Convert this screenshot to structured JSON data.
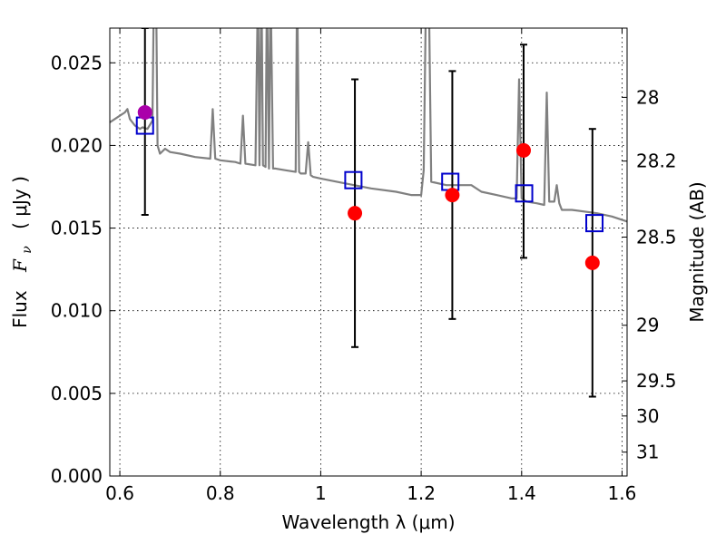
{
  "chart_data": {
    "type": "scatter",
    "xlabel": "Wavelength  λ (μm)",
    "ylabel": "Flux  F_ν  ( μJy )",
    "ylabel_parts": {
      "flux": "Flux",
      "sym": "F",
      "sub": "ν",
      "unit": "( μJy )"
    },
    "y2label": "Magnitude (AB)",
    "xlim": [
      0.58,
      1.61
    ],
    "ylim": [
      0.0,
      0.0271
    ],
    "xticks": [
      0.6,
      0.8,
      1.0,
      1.2,
      1.4,
      1.6
    ],
    "xtick_labels": [
      "0.6",
      "0.8",
      "1",
      "1.2",
      "1.4",
      "1.6"
    ],
    "yticks": [
      0.0,
      0.005,
      0.01,
      0.015,
      0.02,
      0.025
    ],
    "ytick_labels": [
      "0.000",
      "0.005",
      "0.010",
      "0.015",
      "0.020",
      "0.025"
    ],
    "y2ticks": [
      28,
      28.2,
      28.5,
      29,
      29.5,
      30,
      31
    ],
    "y2tick_labels": [
      "28",
      "28.2",
      "28.5",
      "29",
      "29.5",
      "30",
      "31"
    ],
    "grid": true,
    "series": [
      {
        "kind": "spectrum",
        "color": "#808080",
        "x": [
          0.58,
          0.59,
          0.6,
          0.61,
          0.615,
          0.62,
          0.63,
          0.64,
          0.645,
          0.655,
          0.665,
          0.668,
          0.672,
          0.675,
          0.68,
          0.69,
          0.7,
          0.72,
          0.75,
          0.78,
          0.785,
          0.79,
          0.8,
          0.83,
          0.84,
          0.845,
          0.85,
          0.87,
          0.875,
          0.878,
          0.882,
          0.885,
          0.89,
          0.893,
          0.897,
          0.9,
          0.905,
          0.91,
          0.93,
          0.95,
          0.953,
          0.957,
          0.96,
          0.97,
          0.975,
          0.98,
          0.985,
          1.0,
          1.05,
          1.1,
          1.15,
          1.18,
          1.2,
          1.205,
          1.21,
          1.215,
          1.22,
          1.25,
          1.28,
          1.3,
          1.32,
          1.35,
          1.38,
          1.39,
          1.395,
          1.4,
          1.41,
          1.43,
          1.445,
          1.45,
          1.455,
          1.465,
          1.47,
          1.475,
          1.48,
          1.5,
          1.55,
          1.58,
          1.61
        ],
        "y": [
          0.0214,
          0.0216,
          0.0218,
          0.022,
          0.0222,
          0.0216,
          0.0212,
          0.021,
          0.0211,
          0.021,
          0.0215,
          0.03,
          0.03,
          0.02,
          0.0195,
          0.0198,
          0.0196,
          0.0195,
          0.0193,
          0.0192,
          0.0222,
          0.0192,
          0.0191,
          0.019,
          0.0189,
          0.0218,
          0.0189,
          0.0188,
          0.03,
          0.0188,
          0.03,
          0.0188,
          0.0187,
          0.03,
          0.0186,
          0.03,
          0.0186,
          0.0186,
          0.0185,
          0.0184,
          0.03,
          0.0184,
          0.0183,
          0.0183,
          0.0202,
          0.0182,
          0.0181,
          0.018,
          0.0177,
          0.0174,
          0.0172,
          0.017,
          0.017,
          0.0185,
          0.03,
          0.03,
          0.0178,
          0.0176,
          0.0176,
          0.0176,
          0.0172,
          0.017,
          0.0168,
          0.0168,
          0.024,
          0.0168,
          0.0166,
          0.0165,
          0.0164,
          0.0232,
          0.0166,
          0.0166,
          0.0176,
          0.0165,
          0.0161,
          0.0161,
          0.0159,
          0.0157,
          0.0154
        ]
      },
      {
        "kind": "model_points",
        "marker": "open-square",
        "color": "#0000cc",
        "x": [
          0.65,
          1.065,
          1.258,
          1.405,
          1.545
        ],
        "y": [
          0.0212,
          0.0179,
          0.0178,
          0.0171,
          0.0153
        ]
      },
      {
        "kind": "observed_points",
        "marker": "circle",
        "color": "#ff0000",
        "x": [
          1.068,
          1.262,
          1.404,
          1.541
        ],
        "y": [
          0.0159,
          0.017,
          0.0197,
          0.0129
        ],
        "yerr_low": [
          0.0078,
          0.0095,
          0.0132,
          0.0048
        ],
        "yerr_high": [
          0.024,
          0.0245,
          0.0261,
          0.021
        ]
      },
      {
        "kind": "special_point",
        "marker": "circle",
        "color": "#aa00aa",
        "x": [
          0.65
        ],
        "y": [
          0.022
        ],
        "yerr_low": [
          0.0158
        ],
        "yerr_high": [
          0.0271
        ]
      }
    ]
  }
}
